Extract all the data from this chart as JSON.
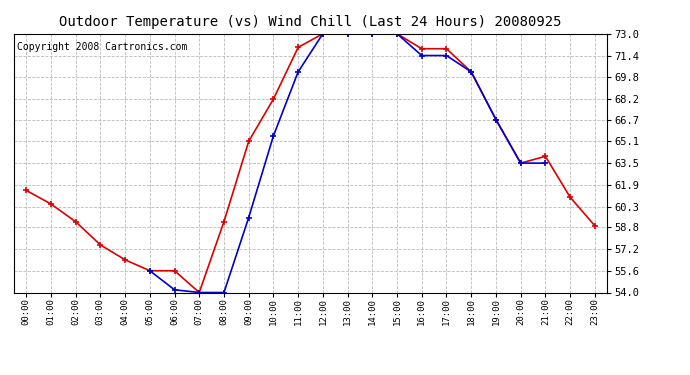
{
  "title": "Outdoor Temperature (vs) Wind Chill (Last 24 Hours) 20080925",
  "copyright": "Copyright 2008 Cartronics.com",
  "x_labels": [
    "00:00",
    "01:00",
    "02:00",
    "03:00",
    "04:00",
    "05:00",
    "06:00",
    "07:00",
    "08:00",
    "09:00",
    "10:00",
    "11:00",
    "12:00",
    "13:00",
    "14:00",
    "15:00",
    "16:00",
    "17:00",
    "18:00",
    "19:00",
    "20:00",
    "21:00",
    "22:00",
    "23:00"
  ],
  "temp_red": [
    61.5,
    60.5,
    59.2,
    57.5,
    56.4,
    55.6,
    55.6,
    54.0,
    59.2,
    65.1,
    68.2,
    72.0,
    73.0,
    73.0,
    73.0,
    73.0,
    71.9,
    71.9,
    70.2,
    66.7,
    63.5,
    64.0,
    61.0,
    58.9
  ],
  "wind_chill_blue": [
    null,
    null,
    null,
    null,
    null,
    55.6,
    54.2,
    54.0,
    54.0,
    59.5,
    65.5,
    70.2,
    73.0,
    73.0,
    73.0,
    73.0,
    71.4,
    71.4,
    70.2,
    66.7,
    63.5,
    63.5,
    null,
    null
  ],
  "ylim": [
    54.0,
    73.0
  ],
  "yticks": [
    54.0,
    55.6,
    57.2,
    58.8,
    60.3,
    61.9,
    63.5,
    65.1,
    66.7,
    68.2,
    69.8,
    71.4,
    73.0
  ],
  "red_color": "#dd0000",
  "blue_color": "#0000cc",
  "bg_color": "#ffffff",
  "grid_color": "#bbbbbb",
  "title_fontsize": 10,
  "copyright_fontsize": 7
}
